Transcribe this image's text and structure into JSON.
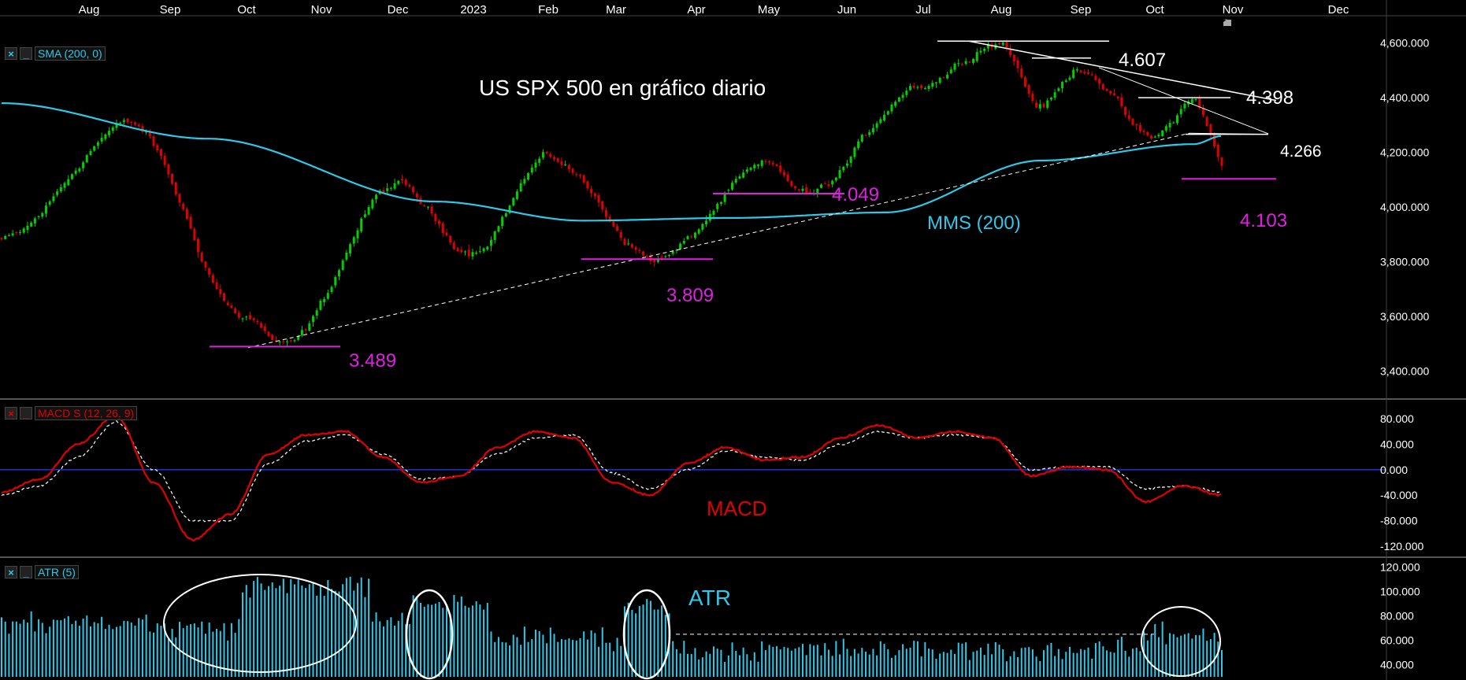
{
  "colors": {
    "bg": "#000000",
    "up": "#00d000",
    "down": "#e00000",
    "sma": "#2ec8e8",
    "macd": "#e00000",
    "signal": "#ffffff",
    "zero": "#2040ff",
    "atr": "#2ec8e8",
    "support": "#e020e0",
    "annot": "#ffffff"
  },
  "x_axis": {
    "months": [
      "Aug",
      "Sep",
      "Oct",
      "Nov",
      "Dec",
      "2023",
      "Feb",
      "Mar",
      "Apr",
      "May",
      "Jun",
      "Jul",
      "Aug",
      "Sep",
      "Oct",
      "Nov",
      "Dec"
    ]
  },
  "panels": {
    "price": {
      "indicator": "SMA (200, 0)",
      "close_icon": "close-icon",
      "min_icon": "minimize-icon"
    },
    "macd": {
      "indicator": "MACD S (12, 26, 9)",
      "close_icon": "close-icon",
      "min_icon": "minimize-icon"
    },
    "atr": {
      "indicator": "ATR (5)",
      "close_icon": "close-icon",
      "min_icon": "minimize-icon"
    }
  },
  "annotations": {
    "title": "US SPX 500 en gráfico diario",
    "sma_label": "MMS (200)",
    "macd_label": "MACD",
    "atr_label": "ATR",
    "levels": {
      "r4607": "4.607",
      "r4398": "4.398",
      "r4266": "4.266",
      "s3489": "3.489",
      "s3809": "3.809",
      "s4049": "4.049",
      "s4103": "4.103"
    }
  },
  "chart_data": [
    {
      "type": "candlestick",
      "name": "US SPX 500 daily",
      "x_range": [
        "2022-08",
        "2023-12"
      ],
      "ylim": [
        3300,
        4700
      ],
      "y_ticks": [
        "3,400.000",
        "3,600.000",
        "3,800.000",
        "4,000.000",
        "4,200.000",
        "4,400.000",
        "4,600.000"
      ],
      "close_path": [
        {
          "month": "2022-Jul-end",
          "value": 3880
        },
        {
          "month": "2022-Aug-mid",
          "value": 4305
        },
        {
          "month": "2022-Sep-end",
          "value": 3600
        },
        {
          "month": "2022-Oct-mid",
          "value": 3489
        },
        {
          "month": "2022-Nov-end",
          "value": 4080
        },
        {
          "month": "2022-Dec-end",
          "value": 3840
        },
        {
          "month": "2023-Feb-start",
          "value": 4180
        },
        {
          "month": "2023-Mar-mid",
          "value": 3809
        },
        {
          "month": "2023-Apr-end",
          "value": 4150
        },
        {
          "month": "2023-May-mid",
          "value": 4049
        },
        {
          "month": "2023-Jun-end",
          "value": 4450
        },
        {
          "month": "2023-Jul-end",
          "value": 4607
        },
        {
          "month": "2023-Aug-mid",
          "value": 4370
        },
        {
          "month": "2023-Sep-start",
          "value": 4510
        },
        {
          "month": "2023-Sep-end",
          "value": 4250
        },
        {
          "month": "2023-Oct-mid",
          "value": 4390
        },
        {
          "month": "2023-Oct-end",
          "value": 4103
        },
        {
          "month": "2023-Nov-start",
          "value": 4250
        }
      ],
      "sma200_path": [
        {
          "month": "2022-Jul-end",
          "value": 4380
        },
        {
          "month": "2022-Sep-mid",
          "value": 4250
        },
        {
          "month": "2022-Dec-mid",
          "value": 4020
        },
        {
          "month": "2023-Feb-mid",
          "value": 3950
        },
        {
          "month": "2023-Apr-mid",
          "value": 3960
        },
        {
          "month": "2023-Jun-mid",
          "value": 3980
        },
        {
          "month": "2023-Aug-mid",
          "value": 4170
        },
        {
          "month": "2023-Oct-mid",
          "value": 4230
        },
        {
          "month": "2023-Nov-start",
          "value": 4260
        }
      ]
    },
    {
      "type": "line",
      "name": "MACD S (12, 26, 9)",
      "ylim": [
        -130,
        105
      ],
      "y_ticks": [
        "80.000",
        "40.000",
        "0.000",
        "-40.000",
        "-80.000",
        "-120.000"
      ],
      "series": [
        {
          "name": "MACD",
          "values": [
            -35,
            -15,
            40,
            85,
            -20,
            -110,
            -70,
            25,
            55,
            60,
            20,
            -20,
            -10,
            35,
            60,
            50,
            -20,
            -40,
            10,
            35,
            15,
            20,
            50,
            70,
            50,
            60,
            50,
            -10,
            5,
            0,
            -50,
            -25,
            -40
          ]
        },
        {
          "name": "Signal",
          "values": [
            -40,
            -25,
            20,
            75,
            0,
            -80,
            -80,
            10,
            45,
            55,
            25,
            -15,
            -10,
            25,
            50,
            55,
            -5,
            -30,
            0,
            30,
            20,
            15,
            40,
            60,
            50,
            55,
            50,
            0,
            5,
            5,
            -30,
            -25,
            -35
          ]
        }
      ]
    },
    {
      "type": "bar",
      "name": "ATR (5)",
      "ylim": [
        30,
        125
      ],
      "y_ticks": [
        "120.000",
        "100.000",
        "80.000",
        "60.000",
        "40.000"
      ],
      "profile": [
        {
          "segment": "2022-Aug",
          "value": 75
        },
        {
          "segment": "2022-Sep",
          "value": 70
        },
        {
          "segment": "2022-Oct-Nov",
          "value": 105
        },
        {
          "segment": "2022-Dec",
          "value": 75
        },
        {
          "segment": "2023-Jan",
          "value": 90
        },
        {
          "segment": "2023-Feb",
          "value": 62
        },
        {
          "segment": "2023-Mar",
          "value": 88
        },
        {
          "segment": "2023-Apr-Sep",
          "value": 52
        },
        {
          "segment": "2023-Oct",
          "value": 65
        }
      ]
    }
  ]
}
